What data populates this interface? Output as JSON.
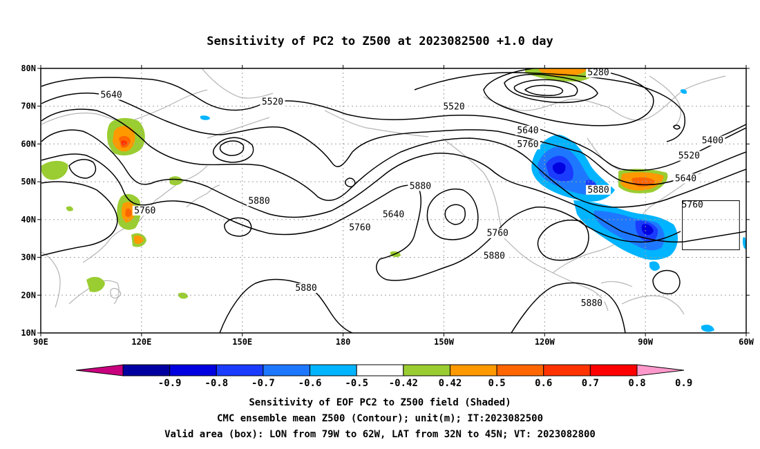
{
  "title": "Sensitivity of PC2 to Z500 at 2023082500 +1.0 day",
  "map": {
    "lon_range": [
      90,
      300
    ],
    "lat_range": [
      10,
      80
    ],
    "lon_ticks": [
      {
        "value": 90,
        "label": "90E"
      },
      {
        "value": 120,
        "label": "120E"
      },
      {
        "value": 150,
        "label": "150E"
      },
      {
        "value": 180,
        "label": "180"
      },
      {
        "value": 210,
        "label": "150W"
      },
      {
        "value": 240,
        "label": "120W"
      },
      {
        "value": 270,
        "label": "90W"
      },
      {
        "value": 300,
        "label": "60W"
      }
    ],
    "lat_ticks": [
      {
        "value": 10,
        "label": "10N"
      },
      {
        "value": 20,
        "label": "20N"
      },
      {
        "value": 30,
        "label": "30N"
      },
      {
        "value": 40,
        "label": "40N"
      },
      {
        "value": 50,
        "label": "50N"
      },
      {
        "value": 60,
        "label": "60N"
      },
      {
        "value": 70,
        "label": "70N"
      },
      {
        "value": 80,
        "label": "80N"
      }
    ],
    "grid": true,
    "valid_box": {
      "lon_min": 281,
      "lon_max": 298,
      "lat_min": 32,
      "lat_max": 45
    },
    "contour_labels": [
      {
        "text": "5640",
        "lon": 111,
        "lat": 72.6
      },
      {
        "text": "5520",
        "lon": 159,
        "lat": 70.8
      },
      {
        "text": "5520",
        "lon": 213,
        "lat": 69.5
      },
      {
        "text": "5280",
        "lon": 256,
        "lat": 78.5
      },
      {
        "text": "5640",
        "lon": 235,
        "lat": 63.2
      },
      {
        "text": "5760",
        "lon": 235,
        "lat": 59.5
      },
      {
        "text": "5400",
        "lon": 290,
        "lat": 60.5
      },
      {
        "text": "5520",
        "lon": 283,
        "lat": 56.5
      },
      {
        "text": "5640",
        "lon": 282,
        "lat": 50.5
      },
      {
        "text": "5760",
        "lon": 284,
        "lat": 43.5
      },
      {
        "text": "5880",
        "lon": 256,
        "lat": 47.5
      },
      {
        "text": "5880",
        "lon": 203,
        "lat": 48.5
      },
      {
        "text": "5640",
        "lon": 195,
        "lat": 41.0
      },
      {
        "text": "5760",
        "lon": 185,
        "lat": 37.5
      },
      {
        "text": "5760",
        "lon": 226,
        "lat": 36.0
      },
      {
        "text": "5880",
        "lon": 225,
        "lat": 30.0
      },
      {
        "text": "5880",
        "lon": 155,
        "lat": 44.5
      },
      {
        "text": "5760",
        "lon": 121,
        "lat": 42.0
      },
      {
        "text": "5880",
        "lon": 169,
        "lat": 21.5
      },
      {
        "text": "5880",
        "lon": 254,
        "lat": 17.5
      }
    ]
  },
  "colorbar": {
    "colors": [
      "#c8007e",
      "#0000a0",
      "#0000e0",
      "#1a3cff",
      "#1e78ff",
      "#00b4ff",
      "#ffffff",
      "#9acd32",
      "#ff9900",
      "#ff6600",
      "#ff3300",
      "#ff0000",
      "#ff99cc"
    ],
    "labels": [
      "-0.9",
      "-0.8",
      "-0.7",
      "-0.6",
      "-0.5",
      "-0.42",
      "0.42",
      "0.5",
      "0.6",
      "0.7",
      "0.8",
      "0.9"
    ]
  },
  "captions": {
    "line1": "Sensitivity of EOF PC2 to Z500 field (Shaded)",
    "line2": "CMC ensemble mean Z500 (Contour); unit(m); IT:2023082500",
    "line3": "Valid area (box): LON from 79W to 62W, LAT from 32N to 45N; VT: 2023082800"
  }
}
